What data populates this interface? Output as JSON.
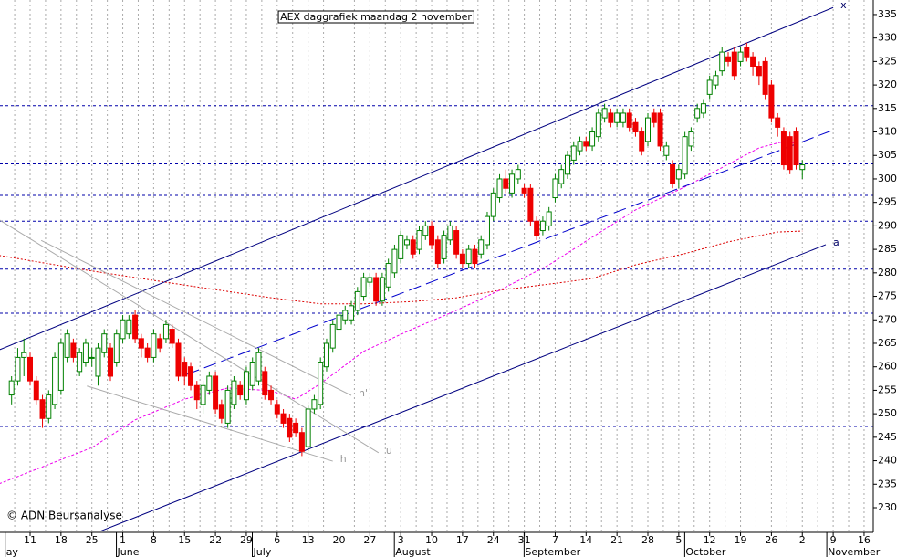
{
  "chart_data": {
    "type": "candlestick",
    "title": "AEX daggrafiek maandag 2 november",
    "copyright": "© ADN Beursanalyse",
    "ylim": [
      224.75,
      338.1
    ],
    "yticks": [
      230,
      235,
      240,
      245,
      250,
      255,
      260,
      265,
      270,
      275,
      280,
      285,
      290,
      295,
      300,
      305,
      310,
      315,
      320,
      325,
      330,
      335
    ],
    "categories": [
      null,
      null,
      null,
      "11",
      null,
      null,
      null,
      null,
      "18",
      null,
      null,
      null,
      null,
      "25",
      null,
      null,
      null,
      null,
      "1",
      null,
      null,
      null,
      null,
      "8",
      null,
      null,
      null,
      null,
      "15",
      null,
      null,
      null,
      null,
      "22",
      null,
      null,
      null,
      null,
      "29",
      null,
      null,
      null,
      null,
      "6",
      null,
      null,
      null,
      null,
      "13",
      null,
      null,
      null,
      null,
      "20",
      null,
      null,
      null,
      null,
      "27",
      null,
      null,
      null,
      null,
      "3",
      null,
      null,
      null,
      null,
      "10",
      null,
      null,
      null,
      null,
      "17",
      null,
      null,
      null,
      null,
      "24",
      null,
      null,
      null,
      null,
      "31",
      null,
      null,
      null,
      null,
      "7",
      null,
      null,
      null,
      null,
      "14",
      null,
      null,
      null,
      null,
      "21",
      null,
      null,
      null,
      null,
      "28",
      null,
      null,
      null,
      null,
      "5",
      null,
      null,
      null,
      null,
      "12",
      null,
      null,
      null,
      null,
      "19",
      null,
      null,
      null,
      null,
      "26",
      null,
      null,
      null,
      null,
      "2",
      null,
      null,
      null,
      null,
      "9",
      null,
      null,
      null,
      null,
      "16"
    ],
    "months": [
      "ay",
      null,
      null,
      null,
      null,
      null,
      null,
      null,
      null,
      null,
      null,
      null,
      null,
      null,
      null,
      null,
      null,
      null,
      "June",
      null,
      null,
      null,
      null,
      null,
      null,
      null,
      null,
      null,
      null,
      null,
      null,
      null,
      null,
      null,
      null,
      null,
      null,
      null,
      null,
      null,
      "July",
      null,
      null,
      null,
      null,
      null,
      null,
      null,
      null,
      null,
      null,
      null,
      null,
      null,
      null,
      null,
      null,
      null,
      null,
      null,
      null,
      null,
      null,
      "August",
      null,
      null,
      null,
      null,
      null,
      null,
      null,
      null,
      null,
      null,
      null,
      null,
      null,
      null,
      null,
      null,
      null,
      null,
      null,
      null,
      "September",
      null,
      null,
      null,
      null,
      null,
      null,
      null,
      null,
      null,
      null,
      null,
      null,
      null,
      null,
      null,
      null,
      null,
      null,
      null,
      null,
      null,
      null,
      null,
      null,
      null,
      "October",
      null,
      null,
      null,
      null,
      null,
      null,
      null,
      null,
      null,
      null,
      null,
      null,
      null,
      null,
      null,
      null,
      null,
      null,
      null,
      null,
      null,
      null,
      "November",
      null,
      null,
      null,
      null,
      null,
      null,
      null,
      null,
      null,
      null
    ],
    "open": [
      254,
      257,
      262,
      262,
      257,
      253,
      249,
      252,
      255,
      262,
      265,
      259,
      261,
      262,
      258,
      263,
      264,
      261,
      266,
      267,
      271,
      266,
      264,
      262,
      266,
      266,
      268,
      265,
      261,
      260,
      256,
      252,
      255,
      258,
      252,
      248,
      252,
      256,
      253,
      256,
      257,
      259,
      255,
      252,
      250,
      249,
      248,
      246,
      243,
      251,
      252,
      260,
      264,
      268,
      270,
      270,
      272,
      275,
      278,
      279,
      274,
      277,
      280,
      283,
      286,
      287,
      285,
      288,
      290,
      287,
      283,
      287,
      289,
      284,
      282,
      285,
      284,
      286,
      292,
      296,
      300,
      297,
      300,
      298,
      298,
      291,
      289,
      290,
      296,
      299,
      301,
      304,
      306,
      308,
      307,
      309,
      313,
      314,
      312,
      312,
      314,
      312,
      310,
      308,
      314,
      314,
      305,
      303,
      300,
      301,
      307,
      313,
      314,
      318,
      320,
      323,
      326,
      327,
      325,
      328,
      326,
      324,
      325,
      320,
      313,
      310,
      309,
      310,
      302,
      null,
      null,
      null,
      null,
      null,
      null,
      null,
      null,
      null,
      null
    ],
    "high": [
      258,
      264,
      266,
      263,
      258,
      254,
      255,
      263,
      266,
      268,
      266,
      264,
      266,
      264,
      265,
      268,
      265,
      268,
      271,
      271,
      272,
      267,
      265,
      268,
      267,
      270,
      269,
      266,
      262,
      261,
      257,
      257,
      259,
      259,
      253,
      256,
      258,
      257,
      260,
      262,
      264,
      260,
      256,
      253,
      251,
      250,
      249,
      247,
      252,
      254,
      262,
      266,
      270,
      272,
      273,
      274,
      277,
      280,
      280,
      280,
      280,
      283,
      286,
      289,
      288,
      288,
      290,
      291,
      291,
      288,
      289,
      291,
      290,
      285,
      286,
      286,
      288,
      293,
      298,
      301,
      302,
      302,
      303,
      299,
      299,
      292,
      292,
      294,
      301,
      303,
      306,
      308,
      309,
      309,
      311,
      315,
      316,
      315,
      315,
      315,
      315,
      313,
      311,
      314,
      315,
      315,
      308,
      304,
      303,
      310,
      311,
      316,
      317,
      322,
      323,
      328,
      327,
      328,
      328,
      329,
      327,
      325,
      326,
      321,
      314,
      311,
      310,
      311,
      304,
      null,
      null,
      null,
      null,
      null,
      null,
      null,
      null,
      null,
      null
    ],
    "low": [
      252,
      256,
      258,
      256,
      252,
      247,
      248,
      251,
      254,
      261,
      261,
      258,
      260,
      260,
      256,
      262,
      257,
      260,
      265,
      266,
      265,
      262,
      261,
      261,
      263,
      265,
      264,
      257,
      256,
      255,
      251,
      250,
      254,
      250,
      248,
      247,
      251,
      253,
      252,
      255,
      256,
      253,
      252,
      249,
      247,
      244,
      245,
      241,
      242,
      250,
      251,
      259,
      263,
      267,
      269,
      269,
      271,
      274,
      277,
      273,
      273,
      276,
      279,
      282,
      285,
      283,
      284,
      287,
      285,
      281,
      282,
      286,
      283,
      281,
      281,
      281,
      283,
      285,
      291,
      295,
      297,
      296,
      299,
      296,
      290,
      287,
      288,
      289,
      295,
      298,
      300,
      303,
      305,
      306,
      306,
      308,
      312,
      311,
      311,
      311,
      310,
      309,
      305,
      307,
      311,
      306,
      304,
      298,
      298,
      300,
      306,
      312,
      313,
      317,
      319,
      322,
      324,
      321,
      324,
      325,
      322,
      320,
      317,
      312,
      309,
      302,
      301,
      302,
      300,
      null,
      null,
      null,
      null,
      null,
      null,
      null,
      null,
      null,
      null
    ],
    "close": [
      257,
      262,
      263,
      257,
      253,
      249,
      254,
      262,
      265,
      267,
      262,
      263,
      265,
      262,
      264,
      267,
      258,
      267,
      270,
      270,
      266,
      264,
      262,
      267,
      264,
      269,
      265,
      258,
      258,
      256,
      253,
      256,
      258,
      251,
      249,
      255,
      257,
      254,
      259,
      261,
      263,
      254,
      253,
      250,
      248,
      245,
      246,
      242,
      251,
      253,
      261,
      265,
      269,
      271,
      272,
      273,
      276,
      279,
      279,
      274,
      279,
      282,
      285,
      288,
      287,
      284,
      289,
      290,
      286,
      282,
      288,
      290,
      284,
      282,
      285,
      282,
      287,
      292,
      297,
      300,
      298,
      301,
      302,
      297,
      291,
      288,
      291,
      293,
      300,
      302,
      305,
      307,
      308,
      307,
      310,
      314,
      315,
      312,
      314,
      314,
      311,
      310,
      306,
      313,
      312,
      307,
      307,
      299,
      302,
      309,
      310,
      315,
      316,
      321,
      322,
      327,
      325,
      322,
      327,
      326,
      324,
      322,
      318,
      313,
      311,
      303,
      302,
      303,
      303,
      null,
      null,
      null,
      null,
      null,
      null,
      null,
      null,
      null,
      null
    ],
    "up_color": "#008000",
    "down_color": "#ee0000",
    "levels": [
      315.6,
      303.2,
      296.5,
      291,
      280.8,
      271.4,
      247.3
    ],
    "level_color": "#0000aa",
    "moving_averages": [
      {
        "color": "#dd0000",
        "dash": "2,2",
        "x": [
          -2,
          13,
          28,
          42,
          50,
          57,
          65,
          72,
          79,
          87,
          94,
          101,
          109,
          116,
          124,
          128
        ],
        "values": [
          283.7,
          280.4,
          277.4,
          274.7,
          273.4,
          273.4,
          273.9,
          274.7,
          276.3,
          277.6,
          278.8,
          281.7,
          284.1,
          286.6,
          288.7,
          288.9
        ]
      },
      {
        "color": "#ee00ee",
        "dash": "3,2",
        "x": [
          -2,
          13,
          20,
          28,
          35,
          42,
          46,
          50,
          57,
          65,
          72,
          79,
          87,
          94,
          101,
          109,
          116,
          121,
          125,
          127
        ],
        "values": [
          235.1,
          242.8,
          248.7,
          253.1,
          255.5,
          254.9,
          253.1,
          256.4,
          263.3,
          268.1,
          272,
          276.3,
          281.7,
          287.6,
          293.4,
          298.3,
          303.1,
          306.6,
          308,
          307.6
        ]
      }
    ],
    "trendlines": [
      {
        "label": "x",
        "color": "#000080",
        "dash": "",
        "x": [
          -2,
          133
        ],
        "values": [
          263.6,
          336.5
        ]
      },
      {
        "label": "a",
        "color": "#000080",
        "dash": "",
        "x": [
          14.4,
          131.8
        ],
        "values": [
          225,
          286
        ]
      },
      {
        "color": "#0000cc",
        "dash": "14,6",
        "x": [
          28.4,
          132.8
        ],
        "values": [
          258.4,
          310.3
        ]
      },
      {
        "label": "u",
        "color": "#aaaaaa",
        "dash": "",
        "x": [
          -2,
          59.4
        ],
        "values": [
          291.3,
          241.7
        ]
      },
      {
        "label": "h'",
        "color": "#aaaaaa",
        "dash": "",
        "x": [
          4.8,
          55
        ],
        "values": [
          286.9,
          253.9
        ]
      },
      {
        "label": "h",
        "color": "#aaaaaa",
        "dash": "",
        "x": [
          12.2,
          52
        ],
        "values": [
          255.9,
          239.9
        ]
      }
    ]
  }
}
